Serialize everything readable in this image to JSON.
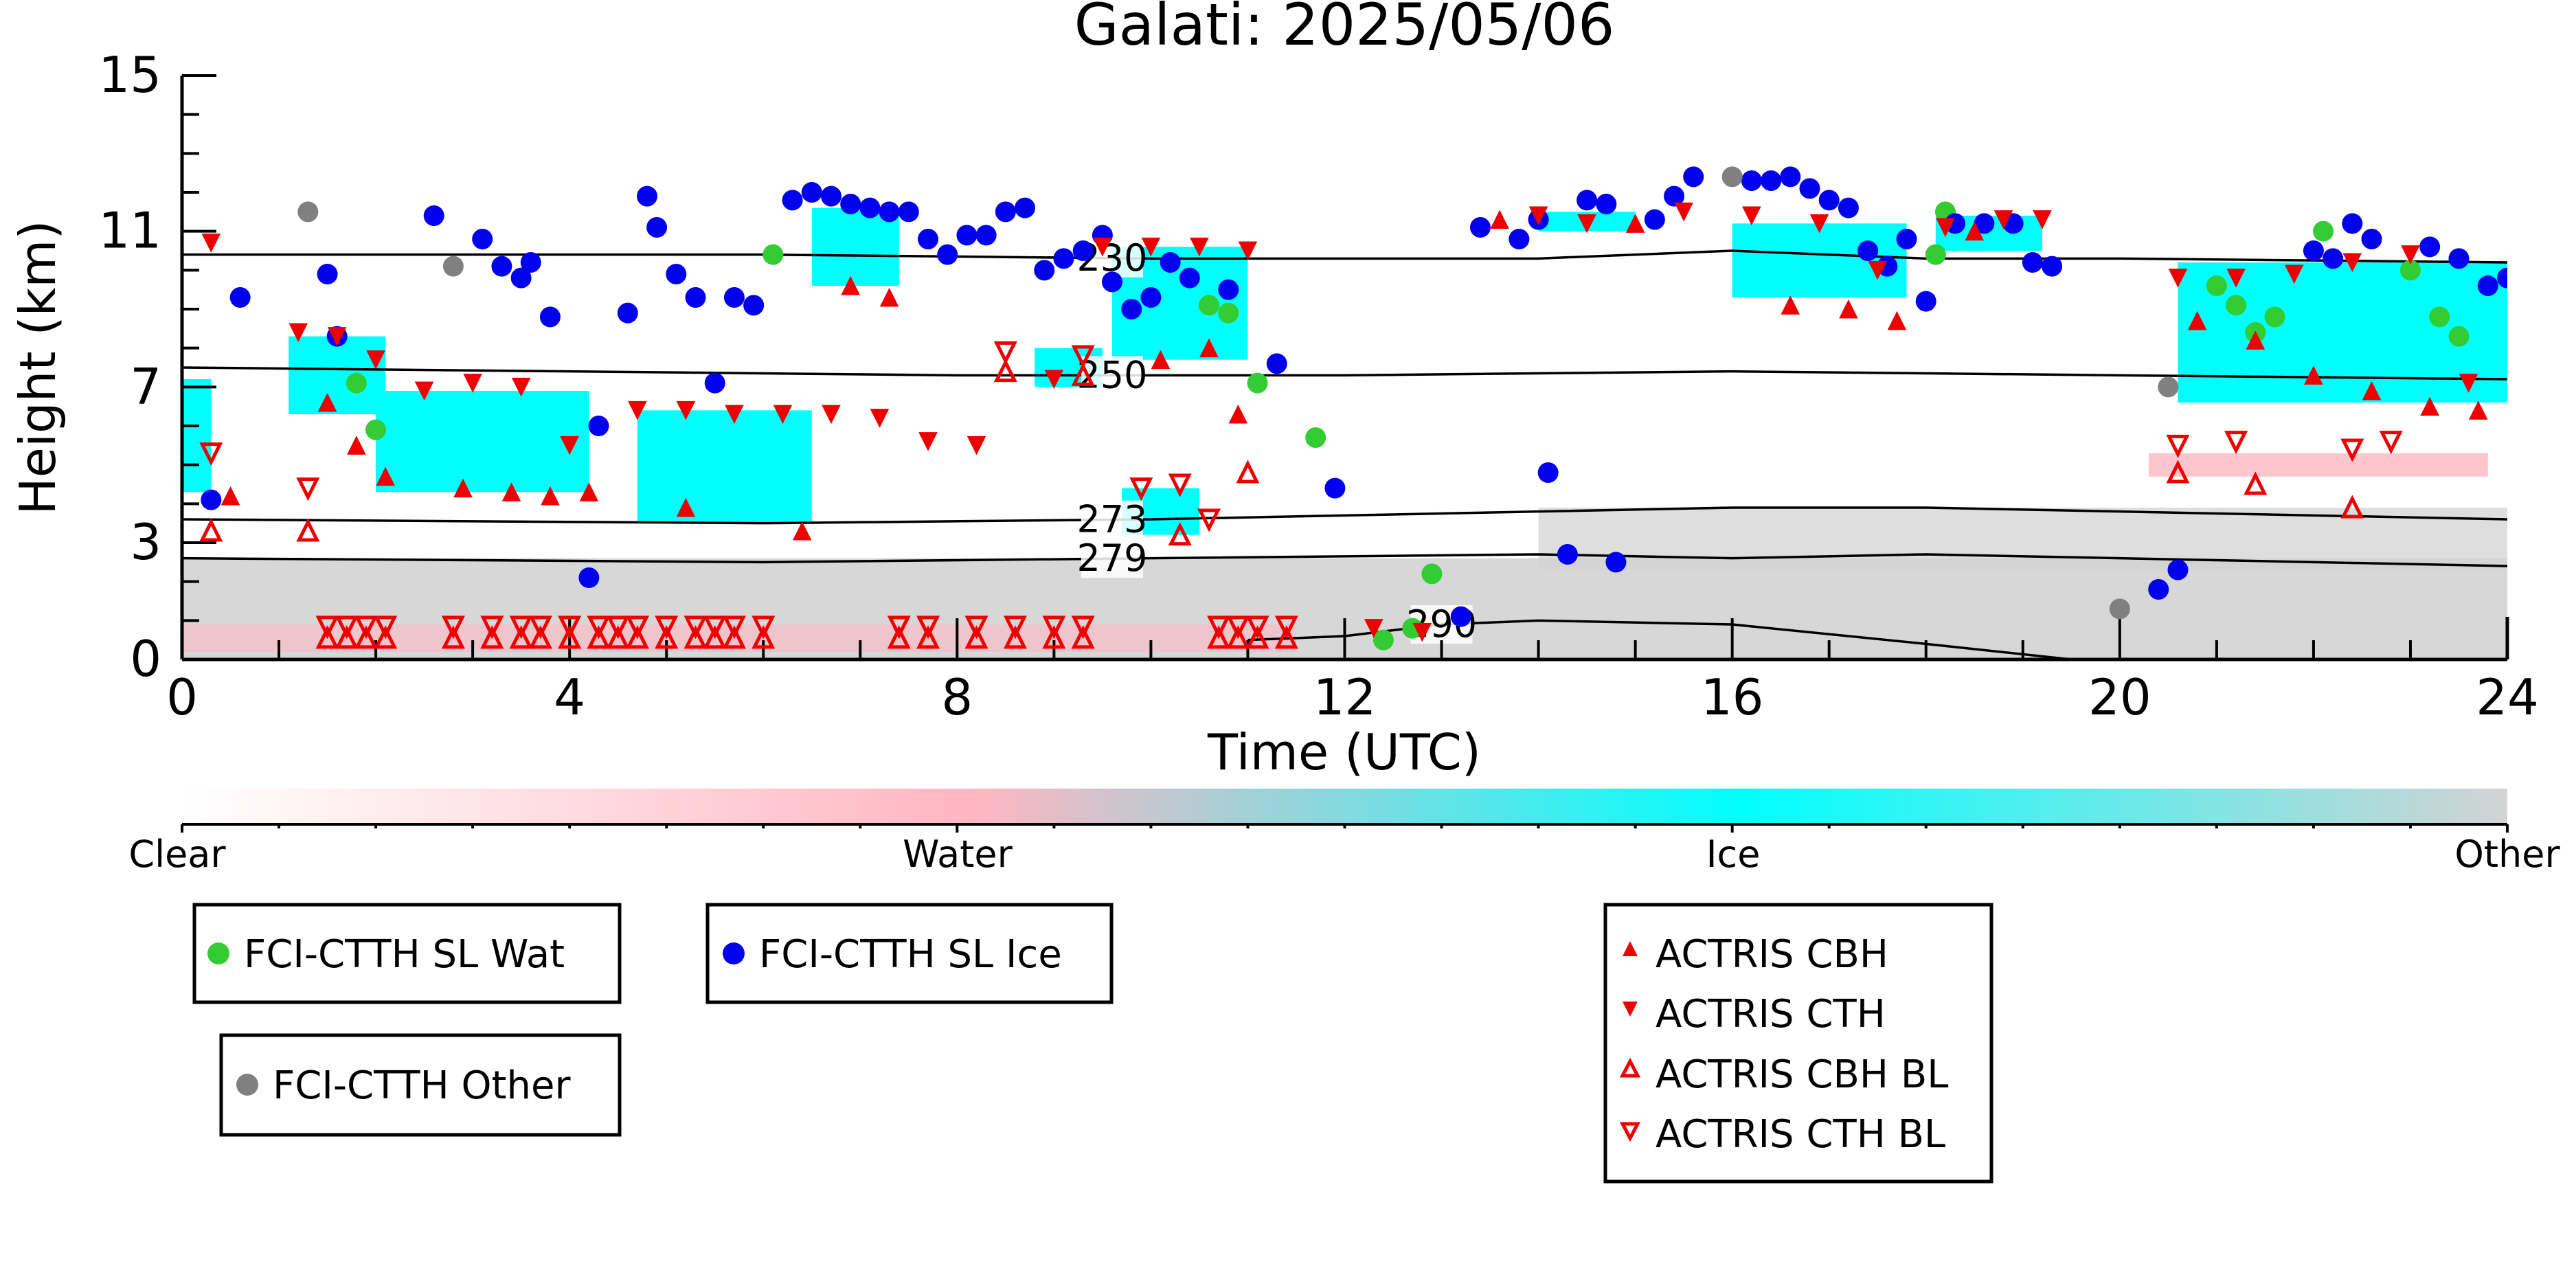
{
  "chart_data": {
    "type": "scatter",
    "title": "Galati: 2025/05/06",
    "xlabel": "Time (UTC)",
    "ylabel": "Height (km)",
    "xlim": [
      0,
      24
    ],
    "ylim": [
      0,
      15
    ],
    "x_ticks": [
      "0",
      "4",
      "8",
      "12",
      "16",
      "20",
      "24"
    ],
    "y_ticks": [
      "0",
      "3",
      "7",
      "11",
      "15"
    ],
    "colorbar": {
      "labels": [
        "Clear",
        "Water",
        "Ice",
        "Other"
      ],
      "colors": [
        "#ffffff",
        "#ffb6c1",
        "#00ffff",
        "#d3d3d3"
      ]
    },
    "isotherms": [
      {
        "label": "230",
        "x": [
          0,
          6,
          10,
          14,
          16,
          18,
          20,
          24
        ],
        "y": [
          10.4,
          10.4,
          10.3,
          10.3,
          10.5,
          10.3,
          10.3,
          10.2
        ]
      },
      {
        "label": "250",
        "x": [
          0,
          4,
          8,
          12,
          16,
          20,
          24
        ],
        "y": [
          7.5,
          7.4,
          7.3,
          7.3,
          7.4,
          7.3,
          7.2
        ]
      },
      {
        "label": "273",
        "x": [
          0,
          6,
          10,
          14,
          16,
          18,
          20,
          24
        ],
        "y": [
          3.6,
          3.5,
          3.6,
          3.8,
          3.9,
          3.9,
          3.8,
          3.6
        ]
      },
      {
        "label": "279",
        "x": [
          0,
          6,
          10,
          14,
          16,
          18,
          20,
          24
        ],
        "y": [
          2.6,
          2.5,
          2.6,
          2.7,
          2.6,
          2.7,
          2.6,
          2.4
        ]
      },
      {
        "label": "290",
        "x": [
          11,
          12,
          13,
          14,
          16,
          18,
          19.5
        ],
        "y": [
          0.5,
          0.6,
          0.9,
          1.0,
          0.9,
          0.4,
          0.0
        ]
      }
    ],
    "series": [
      {
        "name": "FCI-CTTH SL Wat",
        "color": "#33cc33",
        "x": [
          1.8,
          2.0,
          5.9,
          6.1,
          10.6,
          10.8,
          11.1,
          11.7,
          12.4,
          12.7,
          12.9,
          18.1,
          18.2,
          21.0,
          21.2,
          21.4,
          21.6,
          22.1,
          23.0,
          23.3,
          23.5
        ],
        "y": [
          7.1,
          5.9,
          9.1,
          10.4,
          9.1,
          8.9,
          7.1,
          5.7,
          0.5,
          0.8,
          2.2,
          10.4,
          11.5,
          9.6,
          9.1,
          8.4,
          8.8,
          11.0,
          10.0,
          8.8,
          8.3
        ]
      },
      {
        "name": "FCI-CTTH SL Ice",
        "color": "#0000ee",
        "x": [
          0.3,
          0.6,
          1.5,
          1.6,
          2.6,
          3.1,
          3.3,
          3.5,
          3.6,
          3.8,
          4.2,
          4.3,
          4.6,
          4.8,
          4.9,
          5.1,
          5.3,
          5.5,
          5.7,
          5.9,
          6.3,
          6.5,
          6.7,
          6.9,
          7.1,
          7.3,
          7.5,
          7.7,
          7.9,
          8.1,
          8.3,
          8.5,
          8.7,
          8.9,
          9.1,
          9.3,
          9.5,
          9.6,
          9.8,
          10.0,
          10.2,
          10.4,
          10.8,
          11.3,
          11.9,
          13.2,
          13.4,
          13.8,
          14.0,
          14.1,
          14.3,
          14.5,
          14.7,
          14.8,
          15.2,
          15.4,
          15.6,
          16.2,
          16.4,
          16.6,
          16.8,
          17.0,
          17.2,
          17.4,
          17.6,
          17.8,
          18.0,
          18.3,
          18.6,
          18.9,
          19.1,
          19.3,
          20.4,
          20.6,
          22.0,
          22.2,
          22.4,
          22.6,
          23.2,
          23.5,
          23.8,
          24.0
        ],
        "y": [
          4.1,
          9.3,
          9.9,
          8.3,
          11.4,
          10.8,
          10.1,
          9.8,
          10.2,
          8.8,
          2.1,
          6.0,
          8.9,
          11.9,
          11.1,
          9.9,
          9.3,
          7.1,
          9.3,
          9.1,
          11.8,
          12.0,
          11.9,
          11.7,
          11.6,
          11.5,
          11.5,
          10.8,
          10.4,
          10.9,
          10.9,
          11.5,
          11.6,
          10.0,
          10.3,
          10.5,
          10.9,
          9.7,
          9.0,
          9.3,
          10.2,
          9.8,
          9.5,
          7.6,
          4.4,
          1.1,
          11.1,
          10.8,
          11.3,
          4.8,
          2.7,
          11.8,
          11.7,
          2.5,
          11.3,
          11.9,
          12.4,
          12.3,
          12.3,
          12.4,
          12.1,
          11.8,
          11.6,
          10.5,
          10.1,
          10.8,
          9.2,
          11.2,
          11.2,
          11.2,
          10.2,
          10.1,
          1.8,
          2.3,
          10.5,
          10.3,
          11.2,
          10.8,
          10.6,
          10.3,
          9.6,
          9.8
        ]
      },
      {
        "name": "FCI-CTTH Other",
        "color": "#808080",
        "x": [
          1.3,
          2.8,
          16.0,
          20.0,
          20.5
        ],
        "y": [
          11.5,
          10.1,
          12.4,
          1.3,
          7.0
        ]
      },
      {
        "name": "ACTRIS CBH",
        "color": "#ee0000",
        "marker": "triangle-up-filled",
        "x": [
          0.5,
          1.5,
          1.8,
          2.1,
          2.9,
          3.4,
          3.8,
          4.2,
          5.2,
          6.4,
          6.9,
          7.3,
          10.1,
          10.6,
          10.9,
          13.6,
          15.0,
          16.6,
          17.2,
          17.7,
          18.5,
          20.8,
          21.4,
          22.0,
          22.6,
          23.2,
          23.7
        ],
        "y": [
          4.2,
          6.6,
          5.5,
          4.7,
          4.4,
          4.3,
          4.2,
          4.3,
          3.9,
          3.3,
          9.6,
          9.3,
          7.7,
          8.0,
          6.3,
          11.3,
          11.2,
          9.1,
          9.0,
          8.7,
          11.0,
          8.7,
          8.2,
          7.3,
          6.9,
          6.5,
          6.4
        ]
      },
      {
        "name": "ACTRIS CTH",
        "color": "#ee0000",
        "marker": "triangle-down-filled",
        "x": [
          0.3,
          1.2,
          1.6,
          2.0,
          2.5,
          3.0,
          3.5,
          4.0,
          4.7,
          5.2,
          5.7,
          6.2,
          6.7,
          7.2,
          7.7,
          8.2,
          9.0,
          9.5,
          10.0,
          10.5,
          11.0,
          12.3,
          12.8,
          14.0,
          14.5,
          15.5,
          16.2,
          16.9,
          17.5,
          18.2,
          18.8,
          19.2,
          20.6,
          21.2,
          21.8,
          22.4,
          23.0,
          23.6
        ],
        "y": [
          10.7,
          8.4,
          8.3,
          7.7,
          6.9,
          7.1,
          7.0,
          5.5,
          6.4,
          6.4,
          6.3,
          6.3,
          6.3,
          6.2,
          5.6,
          5.5,
          7.2,
          10.6,
          10.6,
          10.6,
          10.5,
          0.8,
          0.7,
          11.4,
          11.2,
          11.5,
          11.4,
          11.2,
          10.0,
          11.1,
          11.3,
          11.3,
          9.8,
          9.8,
          9.9,
          10.2,
          10.4,
          7.1
        ]
      },
      {
        "name": "ACTRIS CBH BL",
        "color": "#ee0000",
        "marker": "triangle-up-open",
        "x": [
          0.3,
          1.3,
          8.5,
          9.3,
          10.3,
          11.0,
          20.6,
          21.4,
          22.4
        ],
        "y": [
          3.3,
          3.3,
          7.4,
          7.3,
          3.2,
          4.8,
          4.8,
          4.5,
          3.9
        ],
        "bl_rows_y": [
          0.8,
          0.5
        ]
      },
      {
        "name": "ACTRIS CTH BL",
        "color": "#ee0000",
        "marker": "triangle-down-open",
        "x": [
          0.3,
          1.3,
          8.5,
          9.3,
          9.9,
          10.3,
          10.6,
          20.6,
          21.2,
          22.4,
          22.8
        ],
        "y": [
          5.3,
          4.4,
          7.9,
          7.8,
          4.4,
          4.5,
          3.6,
          5.5,
          5.6,
          5.4,
          5.6
        ]
      }
    ],
    "bl_marker_times": [
      1.5,
      1.7,
      1.9,
      2.1,
      2.8,
      3.2,
      3.5,
      3.7,
      4.0,
      4.3,
      4.5,
      4.7,
      5.0,
      5.3,
      5.5,
      5.7,
      6.0,
      7.4,
      7.7,
      8.2,
      8.6,
      9.0,
      9.3,
      10.7,
      10.9,
      11.1,
      11.4
    ],
    "legend": {
      "placement": "bottom",
      "boxes": [
        [
          "FCI-CTTH SL Wat"
        ],
        [
          "FCI-CTTH SL Ice"
        ],
        [
          "FCI-CTTH Other"
        ],
        [
          "ACTRIS CBH",
          "ACTRIS CTH",
          "ACTRIS CBH BL",
          "ACTRIS CTH BL"
        ]
      ]
    }
  }
}
